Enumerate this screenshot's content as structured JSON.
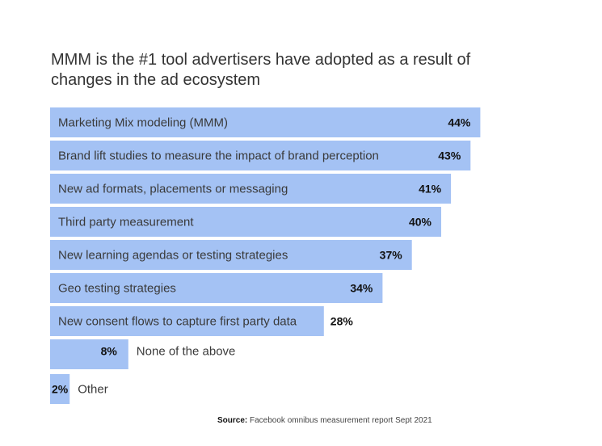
{
  "title": "MMM is the #1 tool advertisers have adopted as a result of changes in the ad ecosystem",
  "source_label": "Source:",
  "source_text": "Facebook omnibus measurement report Sept 2021",
  "colors": {
    "bar": "#a4c2f4"
  },
  "chart_data": {
    "type": "bar",
    "orientation": "horizontal",
    "title": "MMM is the #1 tool advertisers have adopted as a result of changes in the ad ecosystem",
    "categories": [
      "Marketing Mix modeling (MMM)",
      "Brand lift studies to measure the impact of brand perception",
      "New ad formats, placements or messaging",
      "Third party measurement",
      "New learning agendas or testing strategies",
      "Geo testing strategies",
      "New consent flows to capture first party data",
      "None of the above",
      "Other"
    ],
    "values": [
      44,
      43,
      41,
      40,
      37,
      34,
      28,
      8,
      2
    ],
    "value_labels": [
      "44%",
      "43%",
      "41%",
      "40%",
      "37%",
      "34%",
      "28%",
      "8%",
      "2%"
    ],
    "unit": "%",
    "xlabel": "",
    "ylabel": "",
    "grid": false,
    "legend": "none"
  }
}
